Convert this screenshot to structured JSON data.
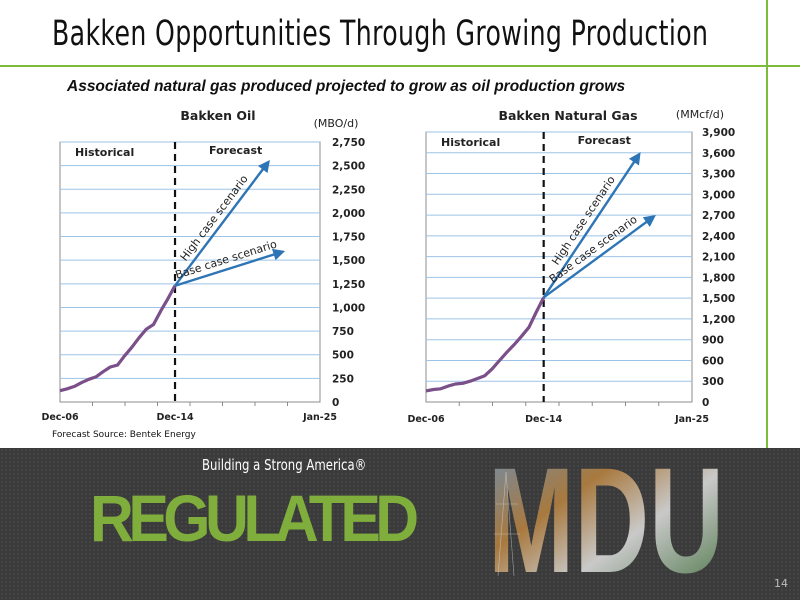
{
  "slide": {
    "title": "Bakken Opportunities Through Growing Production",
    "subtitle": "Associated natural gas produced projected to grow as oil production grows",
    "source_note": "Forecast Source: Bentek Energy",
    "tagline": "Building a Strong America®",
    "regulated": "REGULATED",
    "logo_text": "MDU",
    "page_number": "14"
  },
  "colors": {
    "accent_green": "#7dbb3c",
    "series_line": "#7a4f8a",
    "scenario_arrow": "#2e75b6",
    "gridline": "#9dc3e6",
    "footer_bg": "#3a3a3a"
  },
  "chart_data": [
    {
      "type": "line",
      "title": "Bakken Oil",
      "unit_label": "(MBO/d)",
      "x_tick_labels": [
        "Dec-06",
        "Dec-14",
        "Jan-25"
      ],
      "x_range": [
        "2006-12",
        "2025-01"
      ],
      "forecast_divider": "2014-12",
      "region_labels": [
        "Historical",
        "Forecast"
      ],
      "y_ticks": [
        0,
        250,
        500,
        750,
        1000,
        1250,
        1500,
        1750,
        2000,
        2250,
        2500,
        2750
      ],
      "y_tick_labels": [
        "0",
        "250",
        "500",
        "750",
        "1,000",
        "1,250",
        "1,500",
        "1,750",
        "2,000",
        "2,250",
        "2,500",
        "2,750"
      ],
      "ylim": [
        0,
        2750
      ],
      "y_axis_position": "right",
      "grid": true,
      "series": [
        {
          "kind": "historical",
          "x": [
            "2006-12",
            "2007-06",
            "2007-12",
            "2008-06",
            "2008-12",
            "2009-06",
            "2009-12",
            "2010-06",
            "2010-12",
            "2011-06",
            "2011-12",
            "2012-06",
            "2012-12",
            "2013-06",
            "2013-12",
            "2014-06",
            "2014-12"
          ],
          "values": [
            120,
            140,
            165,
            205,
            240,
            265,
            320,
            370,
            390,
            490,
            580,
            680,
            770,
            820,
            960,
            1090,
            1230
          ]
        }
      ],
      "scenarios": [
        {
          "label": "High case scenario",
          "start": [
            "2014-12",
            1230
          ],
          "end": [
            "2021-06",
            2540
          ]
        },
        {
          "label": "Base case scenario",
          "start": [
            "2014-12",
            1230
          ],
          "end": [
            "2022-06",
            1590
          ]
        }
      ]
    },
    {
      "type": "line",
      "title": "Bakken Natural Gas",
      "unit_label": "(MMcf/d)",
      "x_tick_labels": [
        "Dec-06",
        "Dec-14",
        "Jan-25"
      ],
      "x_range": [
        "2006-12",
        "2025-01"
      ],
      "forecast_divider": "2014-12",
      "region_labels": [
        "Historical",
        "Forecast"
      ],
      "y_ticks": [
        0,
        300,
        600,
        900,
        1200,
        1500,
        1800,
        2100,
        2400,
        2700,
        3000,
        3300,
        3600,
        3900
      ],
      "y_tick_labels": [
        "0",
        "300",
        "600",
        "900",
        "1,200",
        "1,500",
        "1,800",
        "2,100",
        "2,400",
        "2,700",
        "3,000",
        "3,300",
        "3,600",
        "3,900"
      ],
      "ylim": [
        0,
        3900
      ],
      "y_axis_position": "right",
      "grid": true,
      "series": [
        {
          "kind": "historical",
          "x": [
            "2006-12",
            "2007-06",
            "2007-12",
            "2008-06",
            "2008-12",
            "2009-06",
            "2009-12",
            "2010-06",
            "2010-12",
            "2011-06",
            "2011-12",
            "2012-06",
            "2012-12",
            "2013-06",
            "2013-12",
            "2014-06",
            "2014-12"
          ],
          "values": [
            160,
            180,
            190,
            230,
            260,
            270,
            300,
            340,
            380,
            480,
            600,
            720,
            830,
            950,
            1080,
            1300,
            1510
          ]
        }
      ],
      "scenarios": [
        {
          "label": "High case scenario",
          "start": [
            "2014-12",
            1510
          ],
          "end": [
            "2021-06",
            3580
          ]
        },
        {
          "label": "Base case scenario",
          "start": [
            "2014-12",
            1510
          ],
          "end": [
            "2022-06",
            2680
          ]
        }
      ]
    }
  ]
}
